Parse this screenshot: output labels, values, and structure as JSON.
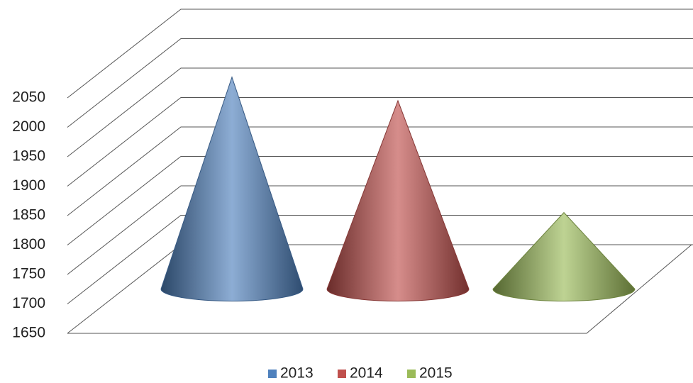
{
  "chart_data": {
    "type": "cone3d",
    "categories": [
      null
    ],
    "series": [
      {
        "name": "2013",
        "color": "#4f81bd",
        "values": [
          2010
        ]
      },
      {
        "name": "2014",
        "color": "#c0504d",
        "values": [
          1970
        ]
      },
      {
        "name": "2015",
        "color": "#9bbb59",
        "values": [
          1780
        ]
      }
    ],
    "ylim": [
      1650,
      2050
    ],
    "yticks": [
      1650,
      1700,
      1750,
      1800,
      1850,
      1900,
      1950,
      2000,
      2050
    ],
    "grid": true,
    "legend": "bottom"
  }
}
